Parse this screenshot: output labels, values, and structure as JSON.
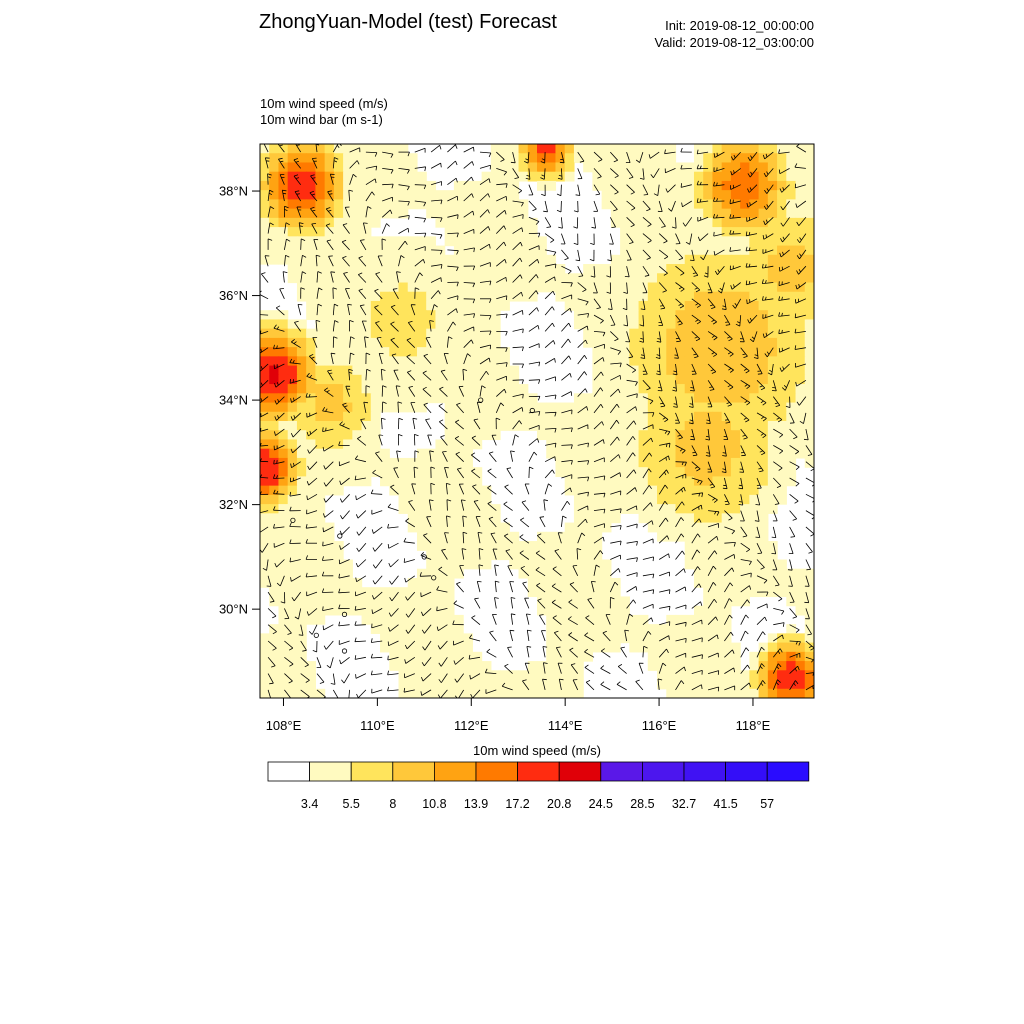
{
  "header": {
    "title": "ZhongYuan-Model (test) Forecast",
    "init_label": "Init: 2019-08-12_00:00:00",
    "valid_label": "Valid: 2019-08-12_03:00:00"
  },
  "subtitle": {
    "line1": "10m wind speed   (m/s)",
    "line2": "10m wind bar   (m s-1)"
  },
  "map": {
    "x_range_deg": [
      107.5,
      119.3
    ],
    "y_range_deg": [
      28.3,
      38.9
    ],
    "x_ticks": [
      {
        "deg": 108,
        "label": "108°E"
      },
      {
        "deg": 110,
        "label": "110°E"
      },
      {
        "deg": 112,
        "label": "112°E"
      },
      {
        "deg": 114,
        "label": "114°E"
      },
      {
        "deg": 116,
        "label": "116°E"
      },
      {
        "deg": 118,
        "label": "118°E"
      }
    ],
    "y_ticks": [
      {
        "deg": 30,
        "label": "30°N"
      },
      {
        "deg": 32,
        "label": "32°N"
      },
      {
        "deg": 34,
        "label": "34°N"
      },
      {
        "deg": 36,
        "label": "36°N"
      },
      {
        "deg": 38,
        "label": "38°N"
      }
    ],
    "speed_centers": [
      {
        "lon": 108.4,
        "lat": 38.1,
        "speed": 20,
        "r": 0.6
      },
      {
        "lon": 107.8,
        "lat": 34.5,
        "speed": 22,
        "r": 0.6
      },
      {
        "lon": 107.6,
        "lat": 32.7,
        "speed": 21,
        "r": 0.5
      },
      {
        "lon": 113.6,
        "lat": 38.8,
        "speed": 18,
        "r": 0.4
      },
      {
        "lon": 117.8,
        "lat": 38.1,
        "speed": 16,
        "r": 0.7
      },
      {
        "lon": 118.8,
        "lat": 28.7,
        "speed": 20,
        "r": 0.5
      },
      {
        "lon": 117.3,
        "lat": 35.0,
        "speed": 10,
        "r": 1.7
      },
      {
        "lon": 117.0,
        "lat": 33.1,
        "speed": 9,
        "r": 1.4
      },
      {
        "lon": 109.0,
        "lat": 33.9,
        "speed": 9,
        "r": 0.8
      },
      {
        "lon": 110.5,
        "lat": 35.5,
        "speed": 6,
        "r": 1.6
      },
      {
        "lon": 118.8,
        "lat": 36.5,
        "speed": 9,
        "r": 1.0
      }
    ],
    "calm_centers": [
      {
        "lon": 112.2,
        "lat": 34.0
      },
      {
        "lon": 113.3,
        "lat": 33.8
      },
      {
        "lon": 108.2,
        "lat": 31.7
      },
      {
        "lon": 109.2,
        "lat": 31.4
      },
      {
        "lon": 111.0,
        "lat": 31.0
      },
      {
        "lon": 111.2,
        "lat": 30.6
      },
      {
        "lon": 109.3,
        "lat": 29.9
      },
      {
        "lon": 109.3,
        "lat": 29.2
      },
      {
        "lon": 108.7,
        "lat": 29.5
      }
    ]
  },
  "colorbar": {
    "title": "10m wind speed  (m/s)",
    "colors": [
      "#ffffff",
      "#fffac0",
      "#ffe45c",
      "#ffc83a",
      "#ffa312",
      "#ff7a00",
      "#ff2c10",
      "#e00008",
      "#5a18e8",
      "#4c16ee",
      "#4012f3",
      "#340ef8",
      "#2a0cff"
    ],
    "labels": [
      "3.4",
      "5.5",
      "8",
      "10.8",
      "13.9",
      "17.2",
      "20.8",
      "24.5",
      "28.5",
      "32.7",
      "41.5",
      "57"
    ]
  }
}
